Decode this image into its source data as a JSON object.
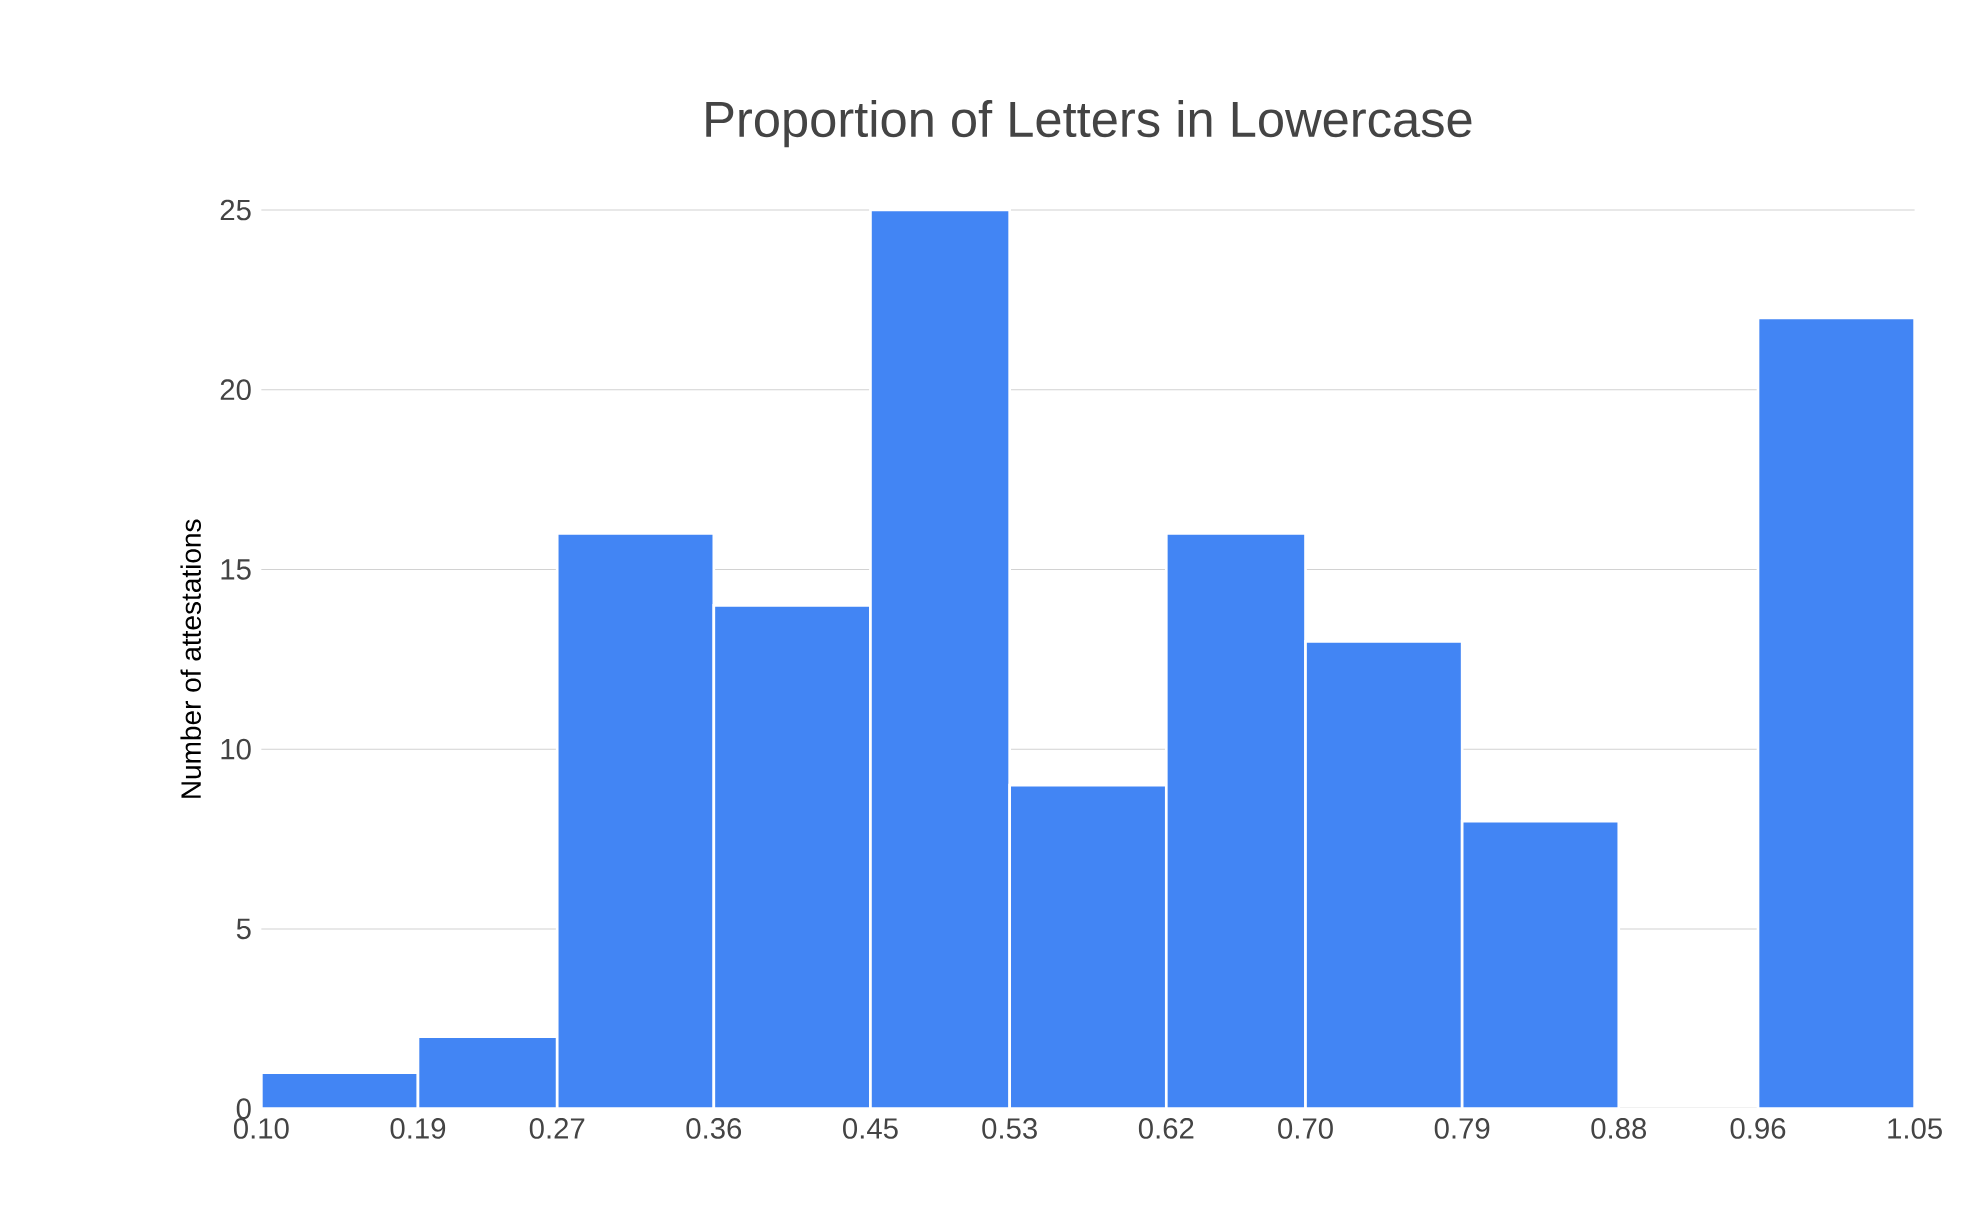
{
  "chart_data": {
    "type": "histogram",
    "title": "Proportion of Letters in Lowercase",
    "ylabel": "Number of attestations",
    "bins": [
      0.1,
      0.19,
      0.27,
      0.36,
      0.45,
      0.53,
      0.62,
      0.7,
      0.79,
      0.88,
      0.96,
      1.05
    ],
    "values": [
      1,
      2,
      16,
      14,
      25,
      9,
      16,
      13,
      8,
      0,
      22
    ],
    "color": "#4285f4",
    "xlim": [
      0.1,
      1.05
    ],
    "xticks": [
      {
        "value": 0.1,
        "label": "0.10"
      },
      {
        "value": 0.19,
        "label": "0.19"
      },
      {
        "value": 0.27,
        "label": "0.27"
      },
      {
        "value": 0.36,
        "label": "0.36"
      },
      {
        "value": 0.45,
        "label": "0.45"
      },
      {
        "value": 0.53,
        "label": "0.53"
      },
      {
        "value": 0.62,
        "label": "0.62"
      },
      {
        "value": 0.7,
        "label": "0.70"
      },
      {
        "value": 0.79,
        "label": "0.79"
      },
      {
        "value": 0.88,
        "label": "0.88"
      },
      {
        "value": 0.96,
        "label": "0.96"
      },
      {
        "value": 1.05,
        "label": "1.05"
      }
    ],
    "ylim": [
      0,
      25
    ],
    "yticks": [
      0,
      5,
      10,
      15,
      20,
      25
    ],
    "grid": "y"
  }
}
